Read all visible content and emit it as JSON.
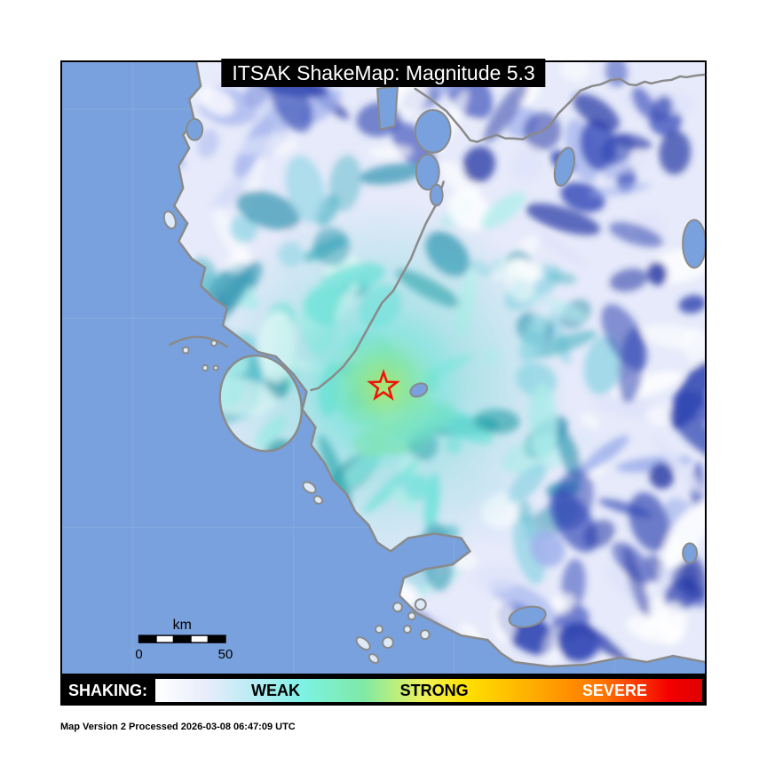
{
  "header": {
    "title": "ITSAK ShakeMap: Magnitude 5.3"
  },
  "map": {
    "epicenter_marker": "red-star",
    "magnitude": "5.3",
    "sea_color": "#78a1dd",
    "coastline_color": "#8a8a8a",
    "epicenter_color": "#ee1408",
    "scale_bar": {
      "label": "km",
      "min": "0",
      "max": "50"
    }
  },
  "legend": {
    "label": "SHAKING:",
    "levels": [
      {
        "label": "WEAK",
        "text_color": "#000000"
      },
      {
        "label": "STRONG",
        "text_color": "#000000"
      },
      {
        "label": "SEVERE",
        "text_color": "#ffffff"
      }
    ],
    "gradient_colors": [
      "#ffffff",
      "#b9ecf4",
      "#7df2e4",
      "#7ee9a6",
      "#ffe000",
      "#ffa800",
      "#f40000",
      "#df0000"
    ]
  },
  "footer": {
    "processing_info": "Map Version 2 Processed 2026-03-08 06:47:09 UTC"
  }
}
